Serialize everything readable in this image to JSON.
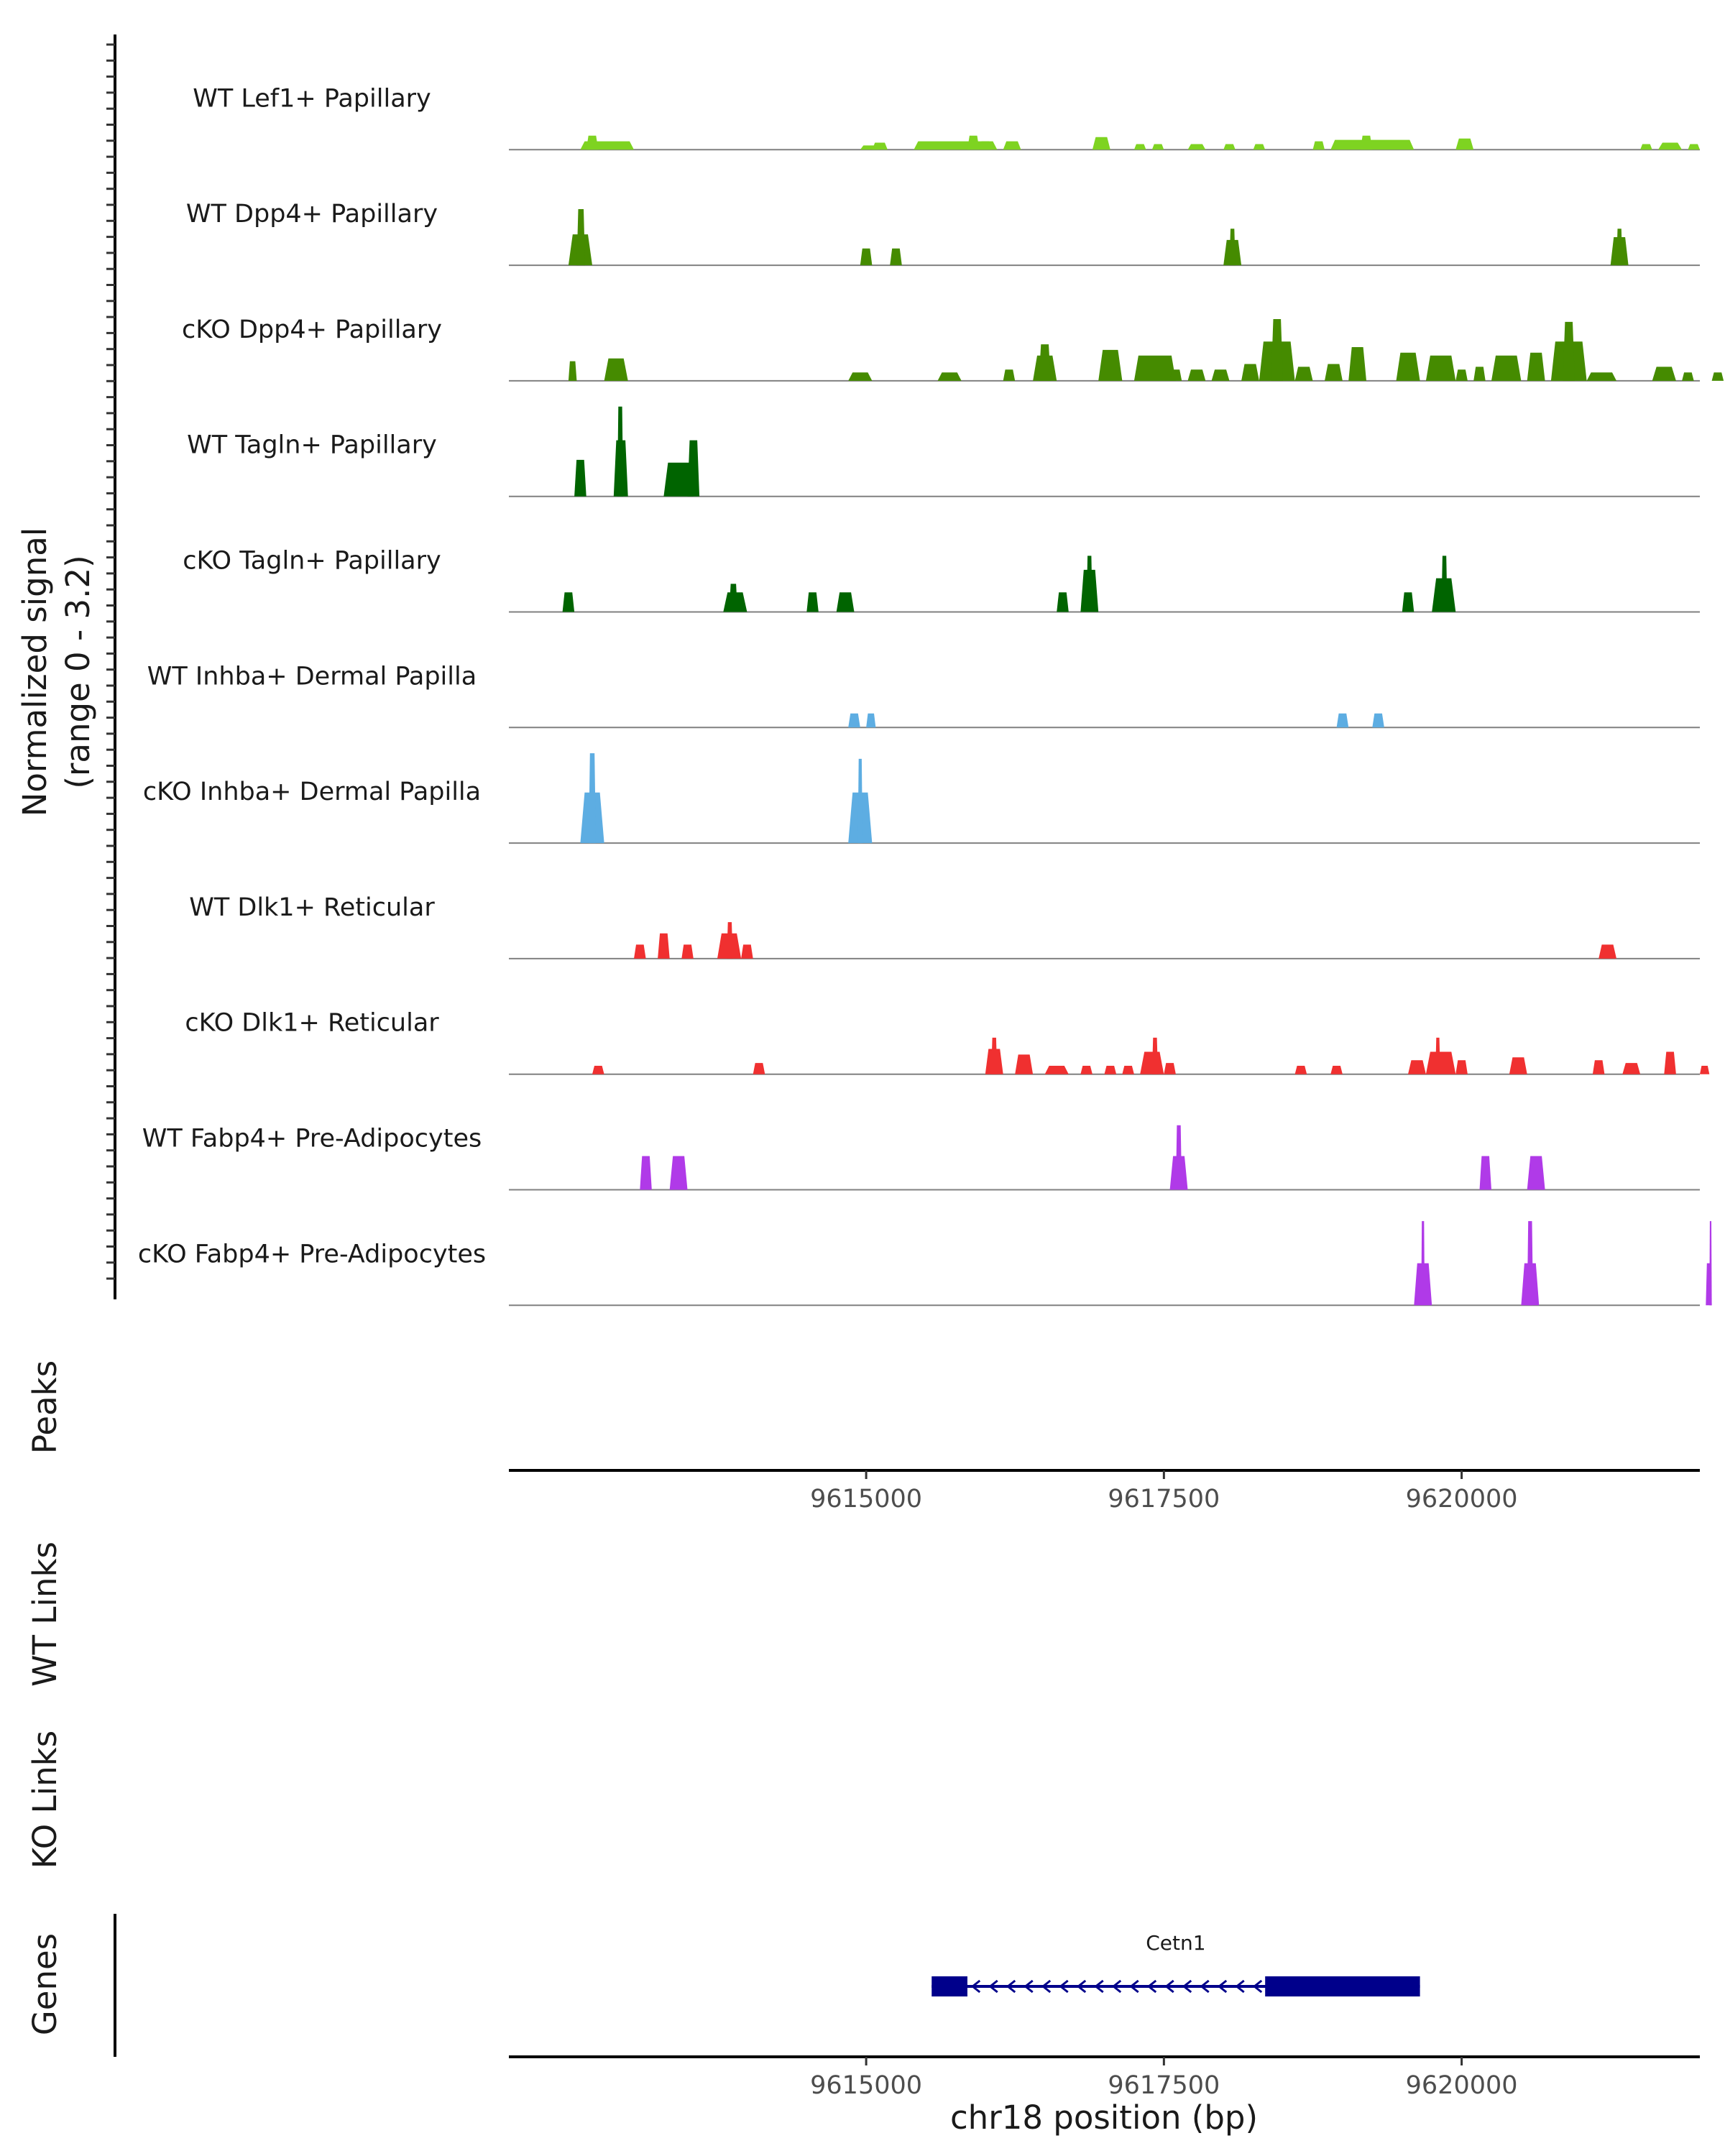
{
  "chart_data": {
    "type": "area",
    "chromosome": "chr18",
    "xlim": [
      9612000,
      9622000
    ],
    "xticks": [
      "9615000",
      "9617500",
      "9620000"
    ],
    "xtick_values": [
      9615000,
      9617500,
      9620000
    ],
    "xlabel": "chr18 position (bp)",
    "signal_ylabel": [
      "Normalized signal",
      "(range 0 - 3.2)"
    ],
    "ylim": [
      0,
      3.2
    ],
    "panels": {
      "peaks": "Peaks",
      "wt_links": "WT Links",
      "ko_links": "KO Links",
      "genes": "Genes"
    },
    "tracks": [
      {
        "name": "WT Lef1+ Papillary",
        "color": "#7ed321",
        "blocks": [
          [
            9612600,
            9613050,
            0.3
          ],
          [
            9612650,
            9612750,
            0.5
          ],
          [
            9614950,
            9615100,
            0.15
          ],
          [
            9615050,
            9615180,
            0.25
          ],
          [
            9615400,
            9616100,
            0.3
          ],
          [
            9615850,
            9615950,
            0.5
          ],
          [
            9615950,
            9616050,
            0.3
          ],
          [
            9616150,
            9616300,
            0.3
          ],
          [
            9616900,
            9617050,
            0.45
          ],
          [
            9617250,
            9617350,
            0.2
          ],
          [
            9617400,
            9617500,
            0.2
          ],
          [
            9617700,
            9617850,
            0.2
          ],
          [
            9618000,
            9618100,
            0.2
          ],
          [
            9618250,
            9618350,
            0.2
          ],
          [
            9618750,
            9618850,
            0.3
          ],
          [
            9618900,
            9619600,
            0.35
          ],
          [
            9619150,
            9619250,
            0.5
          ],
          [
            9619950,
            9620100,
            0.4
          ],
          [
            9621500,
            9621600,
            0.2
          ],
          [
            9621650,
            9621850,
            0.25
          ],
          [
            9621900,
            9622000,
            0.2
          ]
        ]
      },
      {
        "name": "WT Dpp4+ Papillary",
        "color": "#458b00",
        "blocks": [
          [
            9612500,
            9612700,
            1.1
          ],
          [
            9612570,
            9612640,
            2.0
          ],
          [
            9614950,
            9615050,
            0.6
          ],
          [
            9615200,
            9615300,
            0.6
          ],
          [
            9618000,
            9618150,
            0.9
          ],
          [
            9618050,
            9618100,
            1.3
          ],
          [
            9621250,
            9621400,
            1.0
          ],
          [
            9621300,
            9621350,
            1.3
          ]
        ]
      },
      {
        "name": "cKO Dpp4+ Papillary",
        "color": "#458b00",
        "blocks": [
          [
            9612500,
            9612570,
            0.7
          ],
          [
            9612800,
            9613000,
            0.8
          ],
          [
            9614850,
            9615050,
            0.3
          ],
          [
            9615600,
            9615800,
            0.3
          ],
          [
            9616150,
            9616250,
            0.4
          ],
          [
            9616400,
            9616600,
            0.9
          ],
          [
            9616450,
            9616550,
            1.3
          ],
          [
            9616950,
            9617150,
            1.1
          ],
          [
            9617250,
            9617600,
            0.9
          ],
          [
            9617550,
            9617650,
            0.4
          ],
          [
            9617700,
            9617850,
            0.4
          ],
          [
            9617900,
            9618050,
            0.4
          ],
          [
            9618150,
            9618300,
            0.6
          ],
          [
            9618300,
            9618600,
            1.4
          ],
          [
            9618400,
            9618500,
            2.2
          ],
          [
            9618600,
            9618750,
            0.5
          ],
          [
            9618850,
            9619000,
            0.6
          ],
          [
            9619050,
            9619200,
            1.2
          ],
          [
            9619450,
            9619650,
            1.0
          ],
          [
            9619700,
            9619950,
            0.9
          ],
          [
            9619950,
            9620050,
            0.4
          ],
          [
            9620100,
            9620200,
            0.5
          ],
          [
            9620250,
            9620500,
            0.9
          ],
          [
            9620550,
            9620700,
            1.0
          ],
          [
            9620750,
            9621050,
            1.4
          ],
          [
            9620850,
            9620950,
            2.1
          ],
          [
            9621050,
            9621300,
            0.3
          ],
          [
            9621600,
            9621800,
            0.5
          ],
          [
            9621850,
            9621950,
            0.3
          ],
          [
            9622100,
            9622200,
            0.3
          ]
        ]
      },
      {
        "name": "WT Tagln+ Papillary",
        "color": "#006400",
        "blocks": [
          [
            9612550,
            9612650,
            1.3
          ],
          [
            9612880,
            9613000,
            2.0
          ],
          [
            9612910,
            9612960,
            3.2
          ],
          [
            9613300,
            9613550,
            1.2
          ],
          [
            9613500,
            9613600,
            2.0
          ]
        ]
      },
      {
        "name": "cKO Tagln+ Papillary",
        "color": "#006400",
        "blocks": [
          [
            9612450,
            9612550,
            0.7
          ],
          [
            9613800,
            9614000,
            0.7
          ],
          [
            9613850,
            9613920,
            1.0
          ],
          [
            9614500,
            9614600,
            0.7
          ],
          [
            9614750,
            9614900,
            0.7
          ],
          [
            9616600,
            9616700,
            0.7
          ],
          [
            9616800,
            9616950,
            1.5
          ],
          [
            9616850,
            9616900,
            2.0
          ],
          [
            9619500,
            9619600,
            0.7
          ],
          [
            9619750,
            9619950,
            1.2
          ],
          [
            9619830,
            9619880,
            2.0
          ]
        ]
      },
      {
        "name": "WT Inhba+ Dermal Papilla",
        "color": "#5dade2",
        "blocks": [
          [
            9614850,
            9614950,
            0.5
          ],
          [
            9615000,
            9615080,
            0.5
          ],
          [
            9618950,
            9619050,
            0.5
          ],
          [
            9619250,
            9619350,
            0.5
          ]
        ]
      },
      {
        "name": "cKO Inhba+ Dermal Papilla",
        "color": "#5dade2",
        "blocks": [
          [
            9612600,
            9612800,
            1.8
          ],
          [
            9612670,
            9612730,
            3.2
          ],
          [
            9614850,
            9615050,
            1.8
          ],
          [
            9614930,
            9614970,
            3.0
          ]
        ]
      },
      {
        "name": "WT Dlk1+ Reticular",
        "color": "#f03030",
        "blocks": [
          [
            9613050,
            9613150,
            0.5
          ],
          [
            9613250,
            9613350,
            0.9
          ],
          [
            9613450,
            9613550,
            0.5
          ],
          [
            9613750,
            9613950,
            0.9
          ],
          [
            9613830,
            9613880,
            1.3
          ],
          [
            9613950,
            9614050,
            0.5
          ],
          [
            9621150,
            9621300,
            0.5
          ]
        ]
      },
      {
        "name": "cKO Dlk1+ Reticular",
        "color": "#f03030",
        "blocks": [
          [
            9612700,
            9612800,
            0.3
          ],
          [
            9614050,
            9614150,
            0.4
          ],
          [
            9616000,
            9616150,
            0.9
          ],
          [
            9616050,
            9616100,
            1.3
          ],
          [
            9616250,
            9616400,
            0.7
          ],
          [
            9616500,
            9616700,
            0.3
          ],
          [
            9616800,
            9616900,
            0.3
          ],
          [
            9617000,
            9617100,
            0.3
          ],
          [
            9617150,
            9617250,
            0.3
          ],
          [
            9617300,
            9617500,
            0.8
          ],
          [
            9617400,
            9617450,
            1.3
          ],
          [
            9617500,
            9617600,
            0.4
          ],
          [
            9618600,
            9618700,
            0.3
          ],
          [
            9618900,
            9619000,
            0.3
          ],
          [
            9619550,
            9619700,
            0.5
          ],
          [
            9619700,
            9619950,
            0.8
          ],
          [
            9619780,
            9619820,
            1.3
          ],
          [
            9619950,
            9620050,
            0.5
          ],
          [
            9620400,
            9620550,
            0.6
          ],
          [
            9621100,
            9621200,
            0.5
          ],
          [
            9621350,
            9621500,
            0.4
          ],
          [
            9621700,
            9621800,
            0.8
          ],
          [
            9622000,
            9622080,
            0.3
          ]
        ]
      },
      {
        "name": "WT Fabp4+ Pre-Adipocytes",
        "color": "#b03ae8",
        "blocks": [
          [
            9613100,
            9613200,
            1.2
          ],
          [
            9613350,
            9613500,
            1.2
          ],
          [
            9617550,
            9617700,
            1.2
          ],
          [
            9617600,
            9617650,
            2.3
          ],
          [
            9620150,
            9620250,
            1.2
          ],
          [
            9620550,
            9620700,
            1.2
          ]
        ]
      },
      {
        "name": "cKO Fabp4+ Pre-Adipocytes",
        "color": "#b03ae8",
        "blocks": [
          [
            9619600,
            9619750,
            1.5
          ],
          [
            9619660,
            9619690,
            3.0
          ],
          [
            9620500,
            9620650,
            1.5
          ],
          [
            9620550,
            9620600,
            3.0
          ],
          [
            9622050,
            9622100,
            1.5
          ],
          [
            9622080,
            9622100,
            3.0
          ]
        ]
      }
    ],
    "gene": {
      "name": "Cetn1",
      "start": 9615550,
      "end": 9619650,
      "strand": "-",
      "exons": [
        [
          9615550,
          9615850
        ],
        [
          9618350,
          9619650
        ]
      ]
    }
  }
}
